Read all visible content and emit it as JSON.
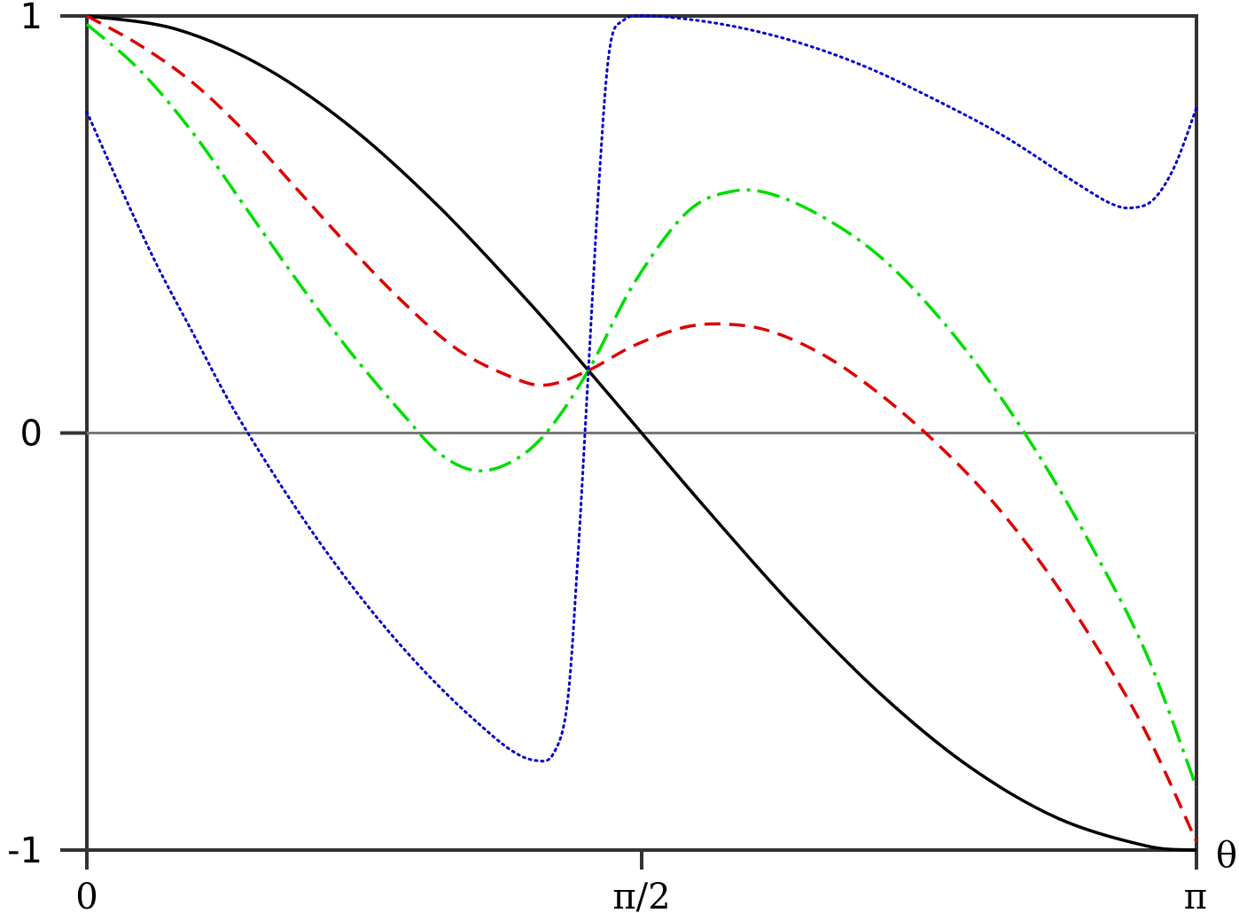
{
  "chart_data": {
    "type": "line",
    "xlabel": "θ",
    "ylabel": "",
    "xlim": [
      0,
      3.14159
    ],
    "ylim": [
      -1,
      1
    ],
    "grid": false,
    "zero_line": true,
    "x_ticks": [
      {
        "value": 0,
        "label": "0"
      },
      {
        "value": 1.5708,
        "label": "π/2"
      },
      {
        "value": 3.14159,
        "label": "π"
      }
    ],
    "y_ticks": [
      {
        "value": 1,
        "label": "1"
      },
      {
        "value": 0,
        "label": "0"
      },
      {
        "value": -1,
        "label": "-1"
      }
    ],
    "series": [
      {
        "style": "solid",
        "color": "#000000",
        "points": [
          [
            0,
            1
          ],
          [
            0.25,
            0.969
          ],
          [
            0.5,
            0.878
          ],
          [
            0.75,
            0.732
          ],
          [
            1.0,
            0.54
          ],
          [
            1.25,
            0.315
          ],
          [
            1.42,
            0.15
          ],
          [
            1.5708,
            0.0
          ],
          [
            1.75,
            -0.178
          ],
          [
            2.0,
            -0.416
          ],
          [
            2.25,
            -0.628
          ],
          [
            2.5,
            -0.801
          ],
          [
            2.75,
            -0.924
          ],
          [
            3.0,
            -0.99
          ],
          [
            3.14159,
            -1.0
          ]
        ]
      },
      {
        "style": "dashed",
        "color": "#dd0000",
        "points": [
          [
            0,
            1.0
          ],
          [
            0.15,
            0.93
          ],
          [
            0.3,
            0.84
          ],
          [
            0.45,
            0.72
          ],
          [
            0.6,
            0.58
          ],
          [
            0.75,
            0.44
          ],
          [
            0.9,
            0.31
          ],
          [
            1.05,
            0.2
          ],
          [
            1.2,
            0.135
          ],
          [
            1.3,
            0.115
          ],
          [
            1.42,
            0.15
          ],
          [
            1.55,
            0.21
          ],
          [
            1.7,
            0.255
          ],
          [
            1.83,
            0.26
          ],
          [
            1.95,
            0.24
          ],
          [
            2.1,
            0.18
          ],
          [
            2.25,
            0.09
          ],
          [
            2.4,
            -0.02
          ],
          [
            2.55,
            -0.15
          ],
          [
            2.7,
            -0.31
          ],
          [
            2.85,
            -0.5
          ],
          [
            3.0,
            -0.72
          ],
          [
            3.14159,
            -0.98
          ]
        ]
      },
      {
        "style": "dashdot",
        "color": "#00dd00",
        "points": [
          [
            0,
            0.98
          ],
          [
            0.15,
            0.87
          ],
          [
            0.3,
            0.72
          ],
          [
            0.45,
            0.54
          ],
          [
            0.6,
            0.36
          ],
          [
            0.75,
            0.19
          ],
          [
            0.9,
            0.04
          ],
          [
            1.0,
            -0.05
          ],
          [
            1.1,
            -0.09
          ],
          [
            1.2,
            -0.07
          ],
          [
            1.3,
            0.0
          ],
          [
            1.42,
            0.15
          ],
          [
            1.55,
            0.36
          ],
          [
            1.7,
            0.53
          ],
          [
            1.83,
            0.58
          ],
          [
            1.95,
            0.57
          ],
          [
            2.1,
            0.51
          ],
          [
            2.25,
            0.42
          ],
          [
            2.4,
            0.29
          ],
          [
            2.55,
            0.13
          ],
          [
            2.7,
            -0.06
          ],
          [
            2.85,
            -0.28
          ],
          [
            3.0,
            -0.53
          ],
          [
            3.14159,
            -0.85
          ]
        ]
      },
      {
        "style": "dotted",
        "color": "#0000cc",
        "points": [
          [
            0,
            0.77
          ],
          [
            0.1,
            0.58
          ],
          [
            0.2,
            0.4
          ],
          [
            0.3,
            0.24
          ],
          [
            0.4,
            0.08
          ],
          [
            0.5,
            -0.06
          ],
          [
            0.6,
            -0.19
          ],
          [
            0.7,
            -0.31
          ],
          [
            0.8,
            -0.42
          ],
          [
            0.9,
            -0.52
          ],
          [
            1.0,
            -0.61
          ],
          [
            1.1,
            -0.69
          ],
          [
            1.2,
            -0.76
          ],
          [
            1.27,
            -0.785
          ],
          [
            1.32,
            -0.77
          ],
          [
            1.36,
            -0.65
          ],
          [
            1.39,
            -0.3
          ],
          [
            1.42,
            0.15
          ],
          [
            1.45,
            0.6
          ],
          [
            1.48,
            0.92
          ],
          [
            1.52,
            0.99
          ],
          [
            1.6,
            1.0
          ],
          [
            1.8,
            0.98
          ],
          [
            2.0,
            0.94
          ],
          [
            2.2,
            0.88
          ],
          [
            2.4,
            0.8
          ],
          [
            2.6,
            0.71
          ],
          [
            2.8,
            0.6
          ],
          [
            2.9,
            0.55
          ],
          [
            2.96,
            0.54
          ],
          [
            3.02,
            0.56
          ],
          [
            3.08,
            0.64
          ],
          [
            3.14159,
            0.78
          ]
        ]
      }
    ]
  }
}
